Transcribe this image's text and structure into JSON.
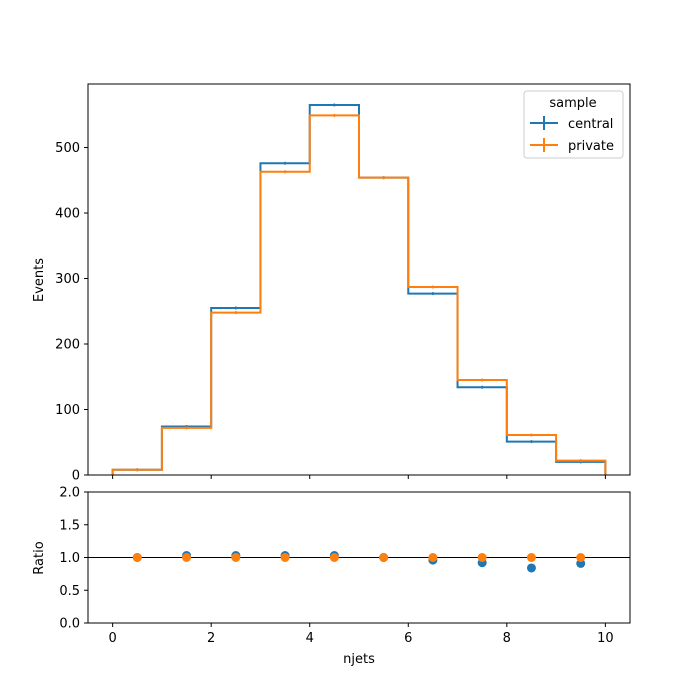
{
  "chart_data": [
    {
      "type": "step",
      "panel": "main",
      "xlabel": "",
      "ylabel": "Events",
      "xlim": [
        -0.5,
        10.5
      ],
      "ylim": [
        0,
        597
      ],
      "yticks": [
        0,
        100,
        200,
        300,
        400,
        500
      ],
      "xticks": [
        0,
        2,
        4,
        6,
        8,
        10
      ],
      "bin_edges": [
        0,
        1,
        2,
        3,
        4,
        5,
        6,
        7,
        8,
        9,
        10
      ],
      "legend": {
        "title": "sample",
        "placement": "top-right"
      },
      "series": [
        {
          "name": "central",
          "color": "#1f77b4",
          "values": [
            8,
            74,
            255,
            476,
            565,
            454,
            277,
            134,
            51,
            20
          ]
        },
        {
          "name": "private",
          "color": "#ff7f0e",
          "values": [
            8,
            72,
            248,
            463,
            549,
            454,
            287,
            145,
            61,
            22
          ]
        }
      ]
    },
    {
      "type": "scatter",
      "panel": "ratio",
      "xlabel": "njets",
      "ylabel": "Ratio",
      "xlim": [
        -0.5,
        10.5
      ],
      "ylim": [
        0,
        2
      ],
      "yticks": [
        0.0,
        0.5,
        1.0,
        1.5,
        2.0
      ],
      "xticks": [
        0,
        2,
        4,
        6,
        8,
        10
      ],
      "reference_line": 1.0,
      "x": [
        0.5,
        1.5,
        2.5,
        3.5,
        4.5,
        5.5,
        6.5,
        7.5,
        8.5,
        9.5
      ],
      "series": [
        {
          "color": "#1f77b4",
          "values": [
            1.0,
            1.03,
            1.03,
            1.03,
            1.03,
            1.0,
            0.96,
            0.92,
            0.84,
            0.91
          ]
        },
        {
          "color": "#ff7f0e",
          "values": [
            1.0,
            1.0,
            1.0,
            1.0,
            1.0,
            1.0,
            1.0,
            1.0,
            1.0,
            1.0
          ]
        }
      ]
    }
  ]
}
